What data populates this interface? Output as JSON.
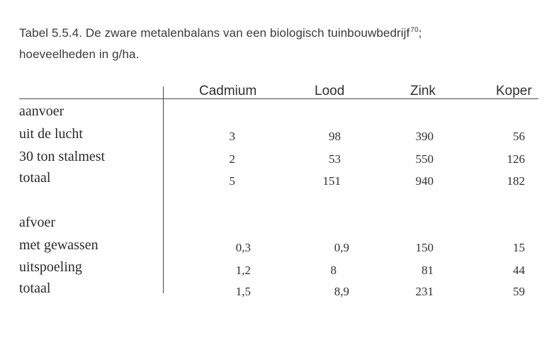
{
  "caption": {
    "line1": "Tabel 5.5.4. De zware metalenbalans van een biologisch tuinbouwbedrijf",
    "footnote": "70",
    "line1_end": ";",
    "line2": "hoeveelheden in g/ha."
  },
  "table": {
    "columns": [
      "Cadmium",
      "Lood",
      "Zink",
      "Koper"
    ],
    "sections": [
      {
        "title": "aanvoer",
        "rows": [
          {
            "label": "uit de lucht",
            "values": [
              "3",
              "98",
              "390",
              "56"
            ]
          },
          {
            "label": "30 ton stalmest",
            "values": [
              "2",
              "53",
              "550",
              "126"
            ]
          },
          {
            "label": "totaal",
            "values": [
              "5",
              "151",
              "940",
              "182"
            ]
          }
        ]
      },
      {
        "title": "afvoer",
        "rows": [
          {
            "label": "met gewassen",
            "values": [
              "0,3",
              "0,9",
              "150",
              "15"
            ]
          },
          {
            "label": "uitspoeling",
            "values": [
              "1,2",
              "8",
              "81",
              "44"
            ]
          },
          {
            "label": "totaal",
            "values": [
              "1,5",
              "8,9",
              "231",
              "59"
            ]
          }
        ]
      }
    ]
  }
}
